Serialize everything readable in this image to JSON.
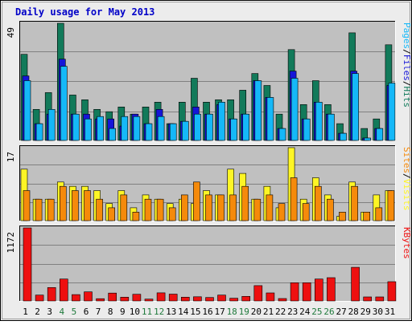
{
  "chart_data": {
    "type": "bar",
    "title": "Daily usage for May 2013",
    "colors": {
      "background": "#ececec",
      "plot": "#c0c0c0",
      "grid": "#808080",
      "title": "#0000c8",
      "axis_text": "#000000",
      "weekend_day": "#1f7a3c",
      "hits": "#127a5a",
      "files": "#1515d8",
      "pages": "#15b8f8",
      "visits": "#fdf525",
      "sites": "#f58a0b",
      "kbytes": "#ee1010"
    },
    "days": [
      "1",
      "2",
      "3",
      "4",
      "5",
      "6",
      "7",
      "8",
      "9",
      "10",
      "11",
      "12",
      "13",
      "14",
      "15",
      "16",
      "17",
      "18",
      "19",
      "20",
      "21",
      "22",
      "23",
      "24",
      "25",
      "26",
      "27",
      "28",
      "29",
      "30",
      "31"
    ],
    "weekend_days": [
      "4",
      "5",
      "11",
      "12",
      "18",
      "19",
      "25",
      "26"
    ],
    "panels": [
      {
        "id": "traffic",
        "max_label": "49",
        "ylim": [
          0,
          49
        ],
        "legend": [
          "Pages",
          "/",
          "Files",
          "/",
          "Hits"
        ],
        "series": [
          {
            "name": "Hits",
            "color": "#127a5a",
            "values": [
              36,
              13,
              20,
              49,
              19,
              17,
              13,
              12,
              14,
              11,
              14,
              16,
              7,
              16,
              26,
              16,
              17,
              17,
              21,
              28,
              23,
              11,
              38,
              15,
              25,
              15,
              7,
              45,
              5,
              9,
              40
            ]
          },
          {
            "name": "Files",
            "color": "#1515d8",
            "values": [
              27,
              7,
              11,
              34,
              11,
              11,
              9,
              9,
              6,
              11,
              7,
              13,
              7,
              8,
              14,
              11,
              15,
              9,
              11,
              25,
              18,
              5,
              29,
              9,
              16,
              11,
              3,
              29,
              1,
              5,
              23
            ]
          },
          {
            "name": "Pages",
            "color": "#15b8f8",
            "values": [
              25,
              7,
              13,
              31,
              11,
              9,
              10,
              5,
              10,
              10,
              7,
              10,
              7,
              8,
              11,
              11,
              16,
              9,
              11,
              25,
              18,
              5,
              26,
              9,
              16,
              11,
              3,
              28,
              1,
              5,
              24
            ]
          }
        ]
      },
      {
        "id": "visitors",
        "max_label": "17",
        "ylim": [
          0,
          17
        ],
        "legend": [
          "Sites",
          "/",
          "Visits"
        ],
        "series": [
          {
            "name": "Visits",
            "color": "#fdf525",
            "values": [
              12,
              5,
              5,
              9,
              8,
              8,
              7,
              4,
              7,
              3,
              6,
              5,
              4,
              5,
              4,
              7,
              6,
              12,
              11,
              5,
              8,
              3,
              17,
              5,
              10,
              6,
              1,
              9,
              2,
              6,
              7
            ]
          },
          {
            "name": "Sites",
            "color": "#f58a0b",
            "values": [
              7,
              5,
              5,
              8,
              7,
              7,
              5,
              3,
              6,
              2,
              5,
              5,
              3,
              6,
              9,
              6,
              6,
              6,
              8,
              5,
              6,
              4,
              10,
              4,
              8,
              5,
              2,
              8,
              2,
              3,
              7
            ]
          }
        ]
      },
      {
        "id": "volume",
        "max_label": "1172",
        "ylim": [
          0,
          1172
        ],
        "legend": [
          "KBytes"
        ],
        "series": [
          {
            "name": "KBytes",
            "color": "#ee1010",
            "values": [
              1172,
              94,
              215,
              352,
              102,
              145,
              36,
              126,
              60,
              107,
              29,
              130,
              109,
              60,
              67,
              56,
              94,
              44,
              73,
              246,
              129,
              39,
              292,
              292,
              352,
              373,
              0,
              540,
              65,
              65,
              309
            ]
          }
        ]
      }
    ]
  }
}
